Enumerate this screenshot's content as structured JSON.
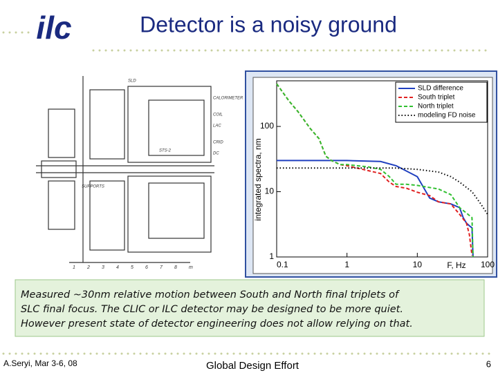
{
  "header": {
    "logo": "ilc",
    "title": "Detector is a noisy ground"
  },
  "drawing": {
    "labels": [
      "SLD",
      "CALORIMETER",
      "COIL",
      "LAC",
      "CRID",
      "DC",
      "STS-2",
      "SUPPORTS"
    ],
    "scale": [
      "1",
      "2",
      "3",
      "4",
      "5",
      "6",
      "7",
      "8",
      "m"
    ]
  },
  "chart_data": {
    "type": "line",
    "xlabel": "F, Hz",
    "ylabel": "integrated spectra, nm",
    "log_x": true,
    "log_y": true,
    "xlim": [
      0.1,
      100
    ],
    "ylim": [
      1,
      500
    ],
    "xticks": [
      0.1,
      1,
      10,
      100
    ],
    "yticks": [
      1,
      10,
      100
    ],
    "legend": "upper right",
    "series": [
      {
        "name": "SLD difference",
        "color": "#1f3fbf",
        "dash": "solid",
        "x": [
          0.1,
          1,
          3,
          5,
          10,
          15,
          20,
          30,
          40,
          45,
          50,
          55,
          60,
          62
        ],
        "values": [
          30,
          30,
          29,
          25,
          17,
          8,
          7,
          6.5,
          5.7,
          4,
          3.3,
          3,
          2.8,
          1
        ]
      },
      {
        "name": "South triplet",
        "color": "#e02020",
        "dash": "dashed",
        "x": [
          0.1,
          0.15,
          0.2,
          0.3,
          0.4,
          0.5,
          0.6,
          0.8,
          1,
          3,
          4,
          5,
          7,
          10,
          15,
          20,
          30,
          40,
          50,
          55,
          60
        ],
        "values": [
          450,
          245,
          170,
          93,
          65,
          35,
          30,
          26,
          25,
          19,
          14,
          12,
          11.3,
          9.8,
          8.7,
          7,
          6.5,
          4.5,
          3.3,
          2.2,
          1.05
        ]
      },
      {
        "name": "North triplet",
        "color": "#30c030",
        "dash": "dashed",
        "x": [
          0.1,
          0.15,
          0.2,
          0.3,
          0.4,
          0.5,
          0.6,
          0.8,
          1,
          2,
          3,
          4,
          5,
          7,
          10,
          20,
          30,
          40,
          50,
          60,
          62
        ],
        "values": [
          450,
          245,
          170,
          93,
          65,
          35,
          30,
          26,
          26,
          24,
          22,
          17,
          13,
          13,
          12.5,
          11,
          9,
          5.7,
          4.7,
          4,
          1
        ]
      },
      {
        "name": "modeling FD noise",
        "color": "#000000",
        "dash": "dotted",
        "x": [
          0.1,
          1,
          5,
          10,
          20,
          30,
          40,
          60,
          80,
          100
        ],
        "values": [
          23,
          23,
          23,
          22,
          20,
          17,
          14,
          10,
          6.5,
          4.5
        ]
      }
    ]
  },
  "body": {
    "lines": [
      "Measured ~30nm relative motion between South and North final triplets of",
      "SLC final focus. The CLIC or ILC detector may be designed to be more quiet.",
      "However present state of detector engineering does not allow relying on that."
    ]
  },
  "footer": {
    "author": "A.Seryi, Mar 3-6, 08",
    "center": "Global Design Effort",
    "page": "6"
  }
}
